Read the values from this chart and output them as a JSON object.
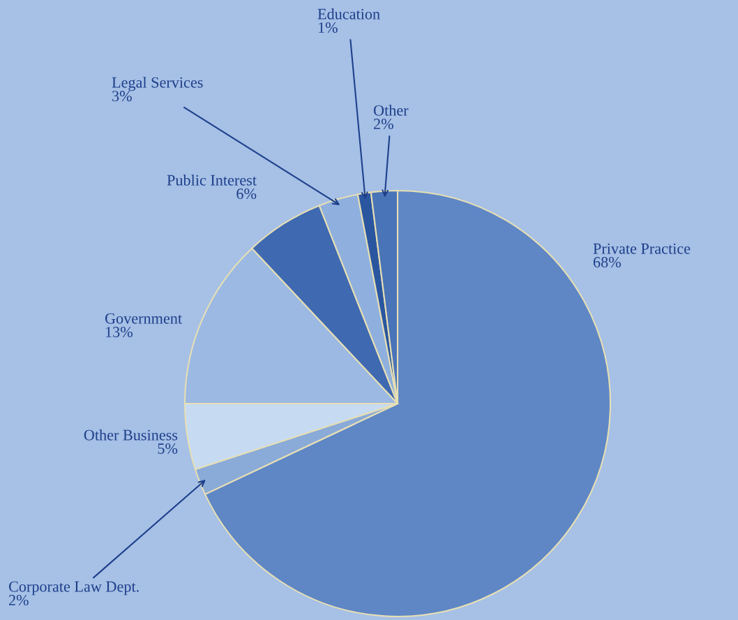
{
  "chart_data": {
    "type": "pie",
    "categories": [
      "Private Practice",
      "Corporate Law Dept.",
      "Other Business",
      "Government",
      "Public Interest",
      "Legal Services",
      "Education",
      "Other"
    ],
    "values": [
      68,
      2,
      5,
      13,
      6,
      3,
      1,
      2
    ],
    "value_labels": [
      "68%",
      "2%",
      "5%",
      "13%",
      "6%",
      "3%",
      "1%",
      "2%"
    ],
    "colors": [
      "#5f87c6",
      "#8aaad8",
      "#c6daf2",
      "#9bb9e3",
      "#3f69b1",
      "#8fb0de",
      "#2a56a0",
      "#4a74b8"
    ]
  }
}
